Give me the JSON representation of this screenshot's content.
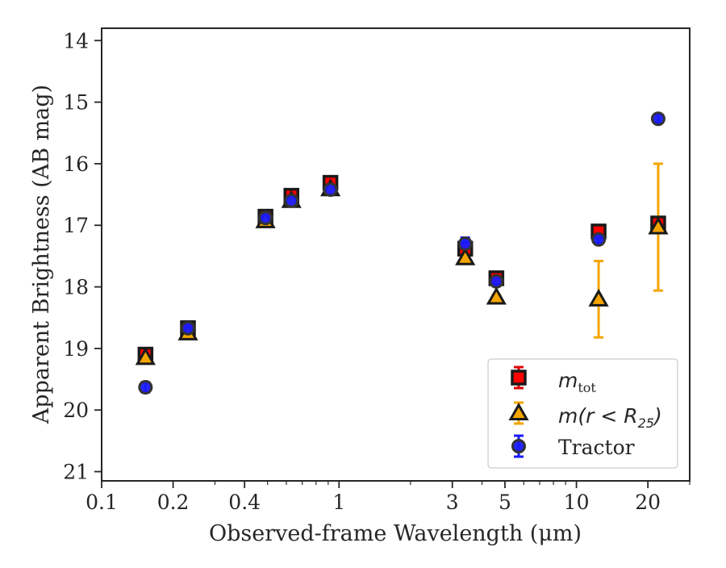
{
  "chart_data": {
    "type": "scatter",
    "xlabel": "Observed-frame Wavelength (μm)",
    "ylabel": "Apparent Brightness (AB mag)",
    "xscale": "log",
    "xlim": [
      0.1,
      30
    ],
    "ylim": [
      21.15,
      13.8
    ],
    "y_inverted": true,
    "x_major_ticks": [
      0.1,
      0.2,
      0.4,
      1,
      3,
      5,
      10,
      20
    ],
    "x_major_tick_labels": [
      "0.1",
      "0.2",
      "0.4",
      "1",
      "3",
      "5",
      "10",
      "20"
    ],
    "y_ticks": [
      14,
      15,
      16,
      17,
      18,
      19,
      20,
      21
    ],
    "y_tick_labels": [
      "14",
      "15",
      "16",
      "17",
      "18",
      "19",
      "20",
      "21"
    ],
    "grid": false,
    "legend_position": "lower-right",
    "series": [
      {
        "name": "m_tot",
        "label_main": "m",
        "label_sub": "tot",
        "marker": "square",
        "color": "#ff0000",
        "edge_color": "#1a1a1a",
        "error_color": "#e00000",
        "points": [
          {
            "x": 0.153,
            "y": 19.1,
            "err": 0.08
          },
          {
            "x": 0.231,
            "y": 18.67,
            "err": 0.06
          },
          {
            "x": 0.49,
            "y": 16.86,
            "err": 0.05
          },
          {
            "x": 0.63,
            "y": 16.52,
            "err": 0.05
          },
          {
            "x": 0.92,
            "y": 16.31,
            "err": 0.05
          },
          {
            "x": 3.4,
            "y": 17.38,
            "err": 0.06
          },
          {
            "x": 4.6,
            "y": 17.86,
            "err": 0.05
          },
          {
            "x": 12.4,
            "y": 17.1,
            "err": 0.07
          },
          {
            "x": 22.1,
            "y": 16.97,
            "err": 0.08
          }
        ]
      },
      {
        "name": "m(r<R25)",
        "label_text": "m(r < R",
        "label_sub": "25",
        "label_close": ")",
        "marker": "triangle",
        "color": "#f5a500",
        "edge_color": "#1a1a1a",
        "error_color": "#f5a500",
        "points": [
          {
            "x": 0.153,
            "y": 19.15,
            "err": 0.05
          },
          {
            "x": 0.231,
            "y": 18.75,
            "err": 0.04
          },
          {
            "x": 0.49,
            "y": 16.93,
            "err": 0.03
          },
          {
            "x": 0.63,
            "y": 16.6,
            "err": 0.03
          },
          {
            "x": 0.92,
            "y": 16.41,
            "err": 0.03
          },
          {
            "x": 3.4,
            "y": 17.53,
            "err": 0.04
          },
          {
            "x": 4.6,
            "y": 18.17,
            "err": 0.04
          },
          {
            "x": 12.4,
            "y": 18.2,
            "err": 0.62
          },
          {
            "x": 22.1,
            "y": 17.03,
            "err": 1.03
          }
        ]
      },
      {
        "name": "Tractor",
        "marker": "circle",
        "color": "#1a1aff",
        "edge_color": "#333333",
        "error_color": "#1a1aff",
        "points": [
          {
            "x": 0.153,
            "y": 19.63,
            "err": 0.08
          },
          {
            "x": 0.231,
            "y": 18.67,
            "err": 0.05
          },
          {
            "x": 0.49,
            "y": 16.88,
            "err": 0.04
          },
          {
            "x": 0.63,
            "y": 16.6,
            "err": 0.04
          },
          {
            "x": 0.92,
            "y": 16.42,
            "err": 0.04
          },
          {
            "x": 3.4,
            "y": 17.3,
            "err": 0.1
          },
          {
            "x": 4.6,
            "y": 17.91,
            "err": 0.06
          },
          {
            "x": 12.4,
            "y": 17.23,
            "err": 0.06
          },
          {
            "x": 22.1,
            "y": 15.27,
            "err": 0.07
          }
        ]
      }
    ]
  }
}
